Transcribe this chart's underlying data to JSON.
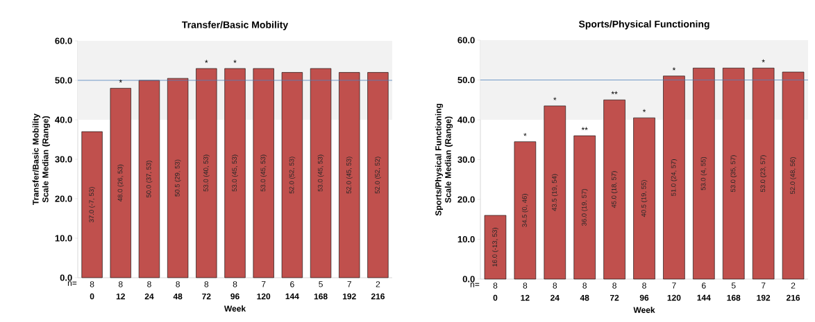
{
  "chart_data": [
    {
      "type": "bar",
      "title": "Transfer/Basic Mobility",
      "xlabel": "Week",
      "ylabel": "Transfer/Basic Mobility  Scale Median (Range)",
      "categories": [
        "0",
        "12",
        "24",
        "48",
        "72",
        "96",
        "120",
        "144",
        "168",
        "192",
        "216"
      ],
      "values": [
        37.0,
        48.0,
        50.0,
        50.5,
        53.0,
        53.0,
        53.0,
        52.0,
        53.0,
        52.0,
        52.0
      ],
      "value_labels": [
        "37.0 (-7, 53)",
        "48.0 (26, 53)",
        "50.0 (37, 53)",
        "50.5 (29, 53)",
        "53.0 (40, 53)",
        "53.0 (45, 53)",
        "53.0 (45, 53)",
        "52.0 (52, 53)",
        "53.0 (45, 53)",
        "52.0 (45, 53)",
        "52.0 (52, 52)"
      ],
      "color": "#c0504d",
      "ylim": [
        0,
        60
      ],
      "yticks": [
        {
          "value": 0,
          "label": "0.0"
        },
        {
          "value": 10,
          "label": "10.0"
        },
        {
          "value": 20,
          "label": "20.0"
        },
        {
          "value": 30,
          "label": "30.0"
        },
        {
          "value": 40,
          "label": "40.0"
        },
        {
          "value": 50,
          "label": "50.0"
        },
        {
          "value": 60,
          "label": "60.0"
        }
      ],
      "ref_lines": [
        {
          "axis": "y",
          "value": 50,
          "color": "#4f81bd"
        }
      ],
      "bands": [
        {
          "axis": "y",
          "from": 40,
          "to": 60,
          "color": "#f2f2f2"
        }
      ],
      "annotations": [
        "n=",
        "8",
        "8",
        "8",
        "8",
        "8",
        "8",
        "7",
        "6",
        "5",
        "7",
        "2",
        {
          "text": "*",
          "x": "12",
          "y": 48.0
        },
        {
          "text": "*",
          "x": "72",
          "y": 53.0
        },
        {
          "text": "*",
          "x": "96",
          "y": 53.0
        }
      ]
    },
    {
      "type": "bar",
      "title": "Sports/Physical Functioning",
      "xlabel": "Week",
      "ylabel": "Sports/Physical Functioning Scale Median (Range)",
      "categories": [
        "0",
        "12",
        "24",
        "48",
        "72",
        "96",
        "120",
        "144",
        "168",
        "192",
        "216"
      ],
      "values": [
        16.0,
        34.5,
        43.5,
        36.0,
        45.0,
        40.5,
        51.0,
        53.0,
        53.0,
        53.0,
        52.0
      ],
      "value_labels": [
        "16.0 (-13, 53)",
        "34.5 (0, 46)",
        "43.5 (19, 54)",
        "36.0 (19, 57)",
        "45.0 (18, 57)",
        "40.5 (19, 55)",
        "51.0 (24, 57)",
        "53.0 (4, 55)",
        "53.0 (35, 57)",
        "53.0 (23, 57)",
        "52.0 (48, 56)"
      ],
      "color": "#c0504d",
      "ylim": [
        0,
        60
      ],
      "yticks": [
        {
          "value": 0,
          "label": "0.0"
        },
        {
          "value": 10,
          "label": "10.0"
        },
        {
          "value": 20,
          "label": "20.0"
        },
        {
          "value": 30,
          "label": "30.0"
        },
        {
          "value": 40,
          "label": "40.0"
        },
        {
          "value": 50,
          "label": "50.0"
        },
        {
          "value": 60,
          "label": "60.0"
        }
      ],
      "ref_lines": [
        {
          "axis": "y",
          "value": 50,
          "color": "#4f81bd"
        }
      ],
      "bands": [
        {
          "axis": "y",
          "from": 40,
          "to": 60,
          "color": "#f2f2f2"
        }
      ],
      "annotations": [
        "n=",
        "8",
        "8",
        "8",
        "8",
        "8",
        "8",
        "7",
        "6",
        "5",
        "7",
        "2",
        {
          "text": "*",
          "x": "12",
          "y": 34.5
        },
        {
          "text": "*",
          "x": "24",
          "y": 43.5
        },
        {
          "text": "**",
          "x": "48",
          "y": 36.0
        },
        {
          "text": "**",
          "x": "72",
          "y": 45.0
        },
        {
          "text": "*",
          "x": "96",
          "y": 40.5
        },
        {
          "text": "*",
          "x": "120",
          "y": 51.0
        },
        {
          "text": "*",
          "x": "192",
          "y": 53.0
        }
      ]
    }
  ]
}
